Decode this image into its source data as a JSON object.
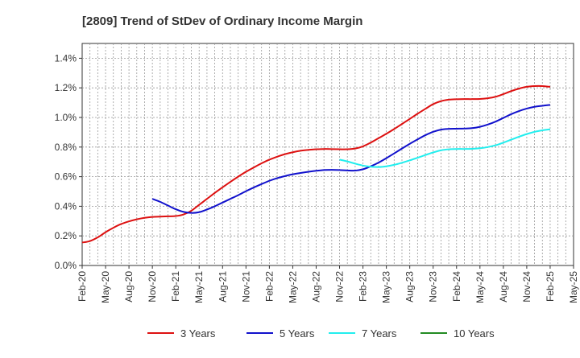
{
  "chart_data": {
    "type": "line",
    "title": "[2809]  Trend of StDev of Ordinary Income Margin",
    "xlabel": "",
    "ylabel": "",
    "y_range": [
      0.0,
      1.5
    ],
    "y_ticks": [
      0.0,
      0.2,
      0.4,
      0.6,
      0.8,
      1.0,
      1.2,
      1.4
    ],
    "y_tick_labels": [
      "0.0%",
      "0.2%",
      "0.4%",
      "0.6%",
      "0.8%",
      "1.0%",
      "1.2%",
      "1.4%"
    ],
    "x_range": [
      "Feb-20",
      "May-25"
    ],
    "x_tick_labels": [
      "Feb-20",
      "May-20",
      "Aug-20",
      "Nov-20",
      "Feb-21",
      "May-21",
      "Aug-21",
      "Nov-21",
      "Feb-22",
      "May-22",
      "Aug-22",
      "Nov-22",
      "Feb-23",
      "May-23",
      "Aug-23",
      "Nov-23",
      "Feb-24",
      "May-24",
      "Aug-24",
      "Nov-24",
      "Feb-25",
      "May-25"
    ],
    "grid": true,
    "legend_position": "bottom",
    "series": [
      {
        "name": "3 Years",
        "color": "#dd1111",
        "x": [
          "Feb-20",
          "Mar-20",
          "Apr-20",
          "May-20",
          "Jun-20",
          "Jul-20",
          "Aug-20",
          "Sep-20",
          "Oct-20",
          "Nov-20",
          "Dec-20",
          "Jan-21",
          "Feb-21",
          "Mar-21",
          "Apr-21",
          "May-21",
          "Jun-21",
          "Jul-21",
          "Aug-21",
          "Sep-21",
          "Oct-21",
          "Nov-21",
          "Dec-21",
          "Jan-22",
          "Feb-22",
          "Mar-22",
          "Apr-22",
          "May-22",
          "Jun-22",
          "Jul-22",
          "Aug-22",
          "Sep-22",
          "Oct-22",
          "Nov-22",
          "Dec-22",
          "Jan-23",
          "Feb-23",
          "Mar-23",
          "Apr-23",
          "May-23",
          "Jun-23",
          "Jul-23",
          "Aug-23",
          "Sep-23",
          "Oct-23",
          "Nov-23",
          "Dec-23",
          "Jan-24",
          "Feb-24",
          "Mar-24",
          "Apr-24",
          "May-24",
          "Jun-24",
          "Jul-24",
          "Aug-24",
          "Sep-24",
          "Oct-24",
          "Nov-24",
          "Dec-24",
          "Jan-25",
          "Feb-25"
        ],
        "values": [
          0.155,
          0.165,
          0.19,
          0.225,
          0.255,
          0.28,
          0.298,
          0.312,
          0.322,
          0.328,
          0.33,
          0.332,
          0.334,
          0.345,
          0.37,
          0.41,
          0.45,
          0.49,
          0.528,
          0.565,
          0.6,
          0.633,
          0.662,
          0.69,
          0.715,
          0.735,
          0.752,
          0.765,
          0.775,
          0.781,
          0.785,
          0.787,
          0.786,
          0.785,
          0.785,
          0.79,
          0.805,
          0.83,
          0.86,
          0.89,
          0.922,
          0.956,
          0.99,
          1.025,
          1.058,
          1.09,
          1.11,
          1.12,
          1.123,
          1.124,
          1.124,
          1.125,
          1.13,
          1.14,
          1.158,
          1.178,
          1.195,
          1.207,
          1.212,
          1.212,
          1.207
        ]
      },
      {
        "name": "5 Years",
        "color": "#1111cc",
        "x": [
          "Nov-20",
          "Dec-20",
          "Jan-21",
          "Feb-21",
          "Mar-21",
          "Apr-21",
          "May-21",
          "Jun-21",
          "Jul-21",
          "Aug-21",
          "Sep-21",
          "Oct-21",
          "Nov-21",
          "Dec-21",
          "Jan-22",
          "Feb-22",
          "Mar-22",
          "Apr-22",
          "May-22",
          "Jun-22",
          "Jul-22",
          "Aug-22",
          "Sep-22",
          "Oct-22",
          "Nov-22",
          "Dec-22",
          "Jan-23",
          "Feb-23",
          "Mar-23",
          "Apr-23",
          "May-23",
          "Jun-23",
          "Jul-23",
          "Aug-23",
          "Sep-23",
          "Oct-23",
          "Nov-23",
          "Dec-23",
          "Jan-24",
          "Feb-24",
          "Mar-24",
          "Apr-24",
          "May-24",
          "Jun-24",
          "Jul-24",
          "Aug-24",
          "Sep-24",
          "Oct-24",
          "Nov-24",
          "Dec-24",
          "Jan-25",
          "Feb-25"
        ],
        "values": [
          0.45,
          0.43,
          0.405,
          0.38,
          0.362,
          0.355,
          0.36,
          0.378,
          0.4,
          0.425,
          0.45,
          0.475,
          0.502,
          0.527,
          0.55,
          0.572,
          0.59,
          0.604,
          0.616,
          0.625,
          0.633,
          0.64,
          0.645,
          0.646,
          0.645,
          0.642,
          0.641,
          0.65,
          0.67,
          0.695,
          0.725,
          0.757,
          0.79,
          0.822,
          0.852,
          0.88,
          0.903,
          0.918,
          0.923,
          0.924,
          0.925,
          0.928,
          0.937,
          0.952,
          0.972,
          0.997,
          1.022,
          1.043,
          1.06,
          1.072,
          1.079,
          1.085
        ]
      },
      {
        "name": "7 Years",
        "color": "#22eeee",
        "x": [
          "Nov-22",
          "Dec-22",
          "Jan-23",
          "Feb-23",
          "Mar-23",
          "Apr-23",
          "May-23",
          "Jun-23",
          "Jul-23",
          "Aug-23",
          "Sep-23",
          "Oct-23",
          "Nov-23",
          "Dec-23",
          "Jan-24",
          "Feb-24",
          "Mar-24",
          "Apr-24",
          "May-24",
          "Jun-24",
          "Jul-24",
          "Aug-24",
          "Sep-24",
          "Oct-24",
          "Nov-24",
          "Dec-24",
          "Jan-25",
          "Feb-25"
        ],
        "values": [
          0.715,
          0.703,
          0.688,
          0.675,
          0.667,
          0.665,
          0.67,
          0.68,
          0.694,
          0.71,
          0.728,
          0.746,
          0.764,
          0.778,
          0.785,
          0.787,
          0.787,
          0.788,
          0.792,
          0.8,
          0.812,
          0.83,
          0.85,
          0.87,
          0.888,
          0.903,
          0.913,
          0.92
        ]
      },
      {
        "name": "10 Years",
        "color": "#228b22",
        "x": [],
        "values": []
      }
    ]
  }
}
